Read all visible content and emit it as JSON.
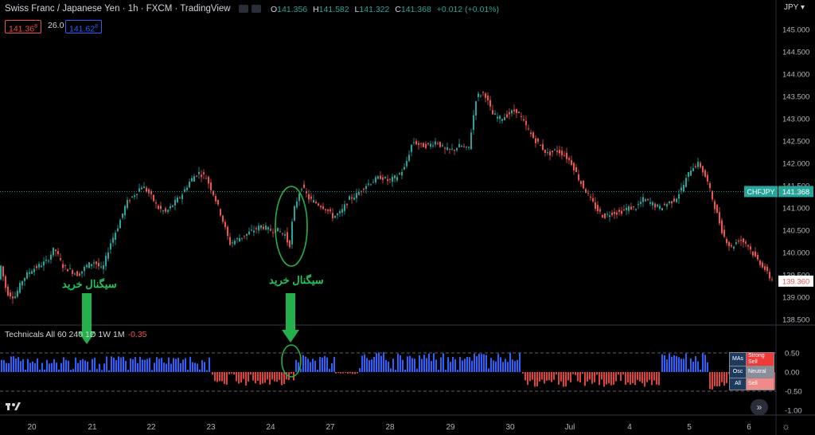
{
  "header": {
    "title": "Swiss Franc / Japanese Yen · 1h · FXCM · TradingView",
    "ohlc": [
      {
        "k": "O",
        "v": "141.356"
      },
      {
        "k": "H",
        "v": "141.582"
      },
      {
        "k": "L",
        "v": "141.322"
      },
      {
        "k": "C",
        "v": "141.368"
      }
    ],
    "change": "+0.012 (+0.01%)",
    "sell_price": "141.36",
    "sell_sup": "8",
    "spread": "26.0",
    "buy_price": "141.62",
    "buy_sup": "8",
    "currency": "JPY"
  },
  "indicator": {
    "title": "Technicals All 60 240 1D 1W 1M",
    "value": "-0.35",
    "table": [
      {
        "k": "MAs",
        "v": "Strong Sell",
        "color": "#ef3a3a"
      },
      {
        "k": "Osc",
        "v": "Neutral",
        "color": "#8a8e99"
      },
      {
        "k": "All",
        "v": "Sell",
        "color": "#f08a8a"
      }
    ]
  },
  "annotations": {
    "buy_signal_1": "سیگنال خرید",
    "buy_signal_2": "سیگنال خرید",
    "arrow_color": "#22b14c"
  },
  "colors": {
    "up": "#26a69a",
    "down": "#ef5350",
    "osc_pos": "#2962ff",
    "osc_neg": "#e0413a",
    "symbol_label": "#26a69a",
    "last_label_bg": "#ffffff",
    "last_label_fg": "#ef5350"
  },
  "chart_data": [
    {
      "type": "candlestick",
      "symbol": "CHFJPY",
      "x_ticks": [
        "20",
        "21",
        "22",
        "23",
        "24",
        "27",
        "28",
        "29",
        "30",
        "Jul",
        "4",
        "5",
        "6"
      ],
      "y_ticks": [
        "145.000",
        "144.500",
        "144.000",
        "143.500",
        "143.000",
        "142.500",
        "142.000",
        "141.500",
        "141.000",
        "140.500",
        "140.000",
        "139.500",
        "139.000",
        "138.500"
      ],
      "ylim": [
        138.5,
        145.0
      ],
      "current_price": 141.368,
      "current_label": "141.368",
      "symbol_label": "CHFJPY",
      "last_label": "139.360",
      "path": [
        [
          0,
          139.9
        ],
        [
          10,
          139.1
        ],
        [
          20,
          139.0
        ],
        [
          30,
          139.4
        ],
        [
          40,
          139.6
        ],
        [
          50,
          139.7
        ],
        [
          60,
          139.8
        ],
        [
          70,
          140.1
        ],
        [
          80,
          139.7
        ],
        [
          90,
          139.6
        ],
        [
          100,
          139.5
        ],
        [
          110,
          139.7
        ],
        [
          120,
          139.8
        ],
        [
          130,
          139.6
        ],
        [
          140,
          140.2
        ],
        [
          150,
          140.6
        ],
        [
          160,
          141.1
        ],
        [
          170,
          141.3
        ],
        [
          180,
          141.5
        ],
        [
          190,
          141.3
        ],
        [
          200,
          141.0
        ],
        [
          210,
          140.9
        ],
        [
          220,
          141.1
        ],
        [
          230,
          141.3
        ],
        [
          240,
          141.6
        ],
        [
          250,
          141.8
        ],
        [
          260,
          141.7
        ],
        [
          270,
          141.3
        ],
        [
          280,
          140.8
        ],
        [
          290,
          140.2
        ],
        [
          300,
          140.3
        ],
        [
          310,
          140.4
        ],
        [
          320,
          140.5
        ],
        [
          330,
          140.6
        ],
        [
          340,
          140.5
        ],
        [
          350,
          140.5
        ],
        [
          360,
          140.4
        ],
        [
          365,
          140.1
        ],
        [
          370,
          140.9
        ],
        [
          380,
          141.5
        ],
        [
          390,
          141.2
        ],
        [
          400,
          141.1
        ],
        [
          410,
          141.0
        ],
        [
          420,
          140.8
        ],
        [
          430,
          140.9
        ],
        [
          440,
          141.2
        ],
        [
          450,
          141.3
        ],
        [
          460,
          141.5
        ],
        [
          470,
          141.6
        ],
        [
          480,
          141.7
        ],
        [
          490,
          141.6
        ],
        [
          500,
          141.7
        ],
        [
          510,
          141.9
        ],
        [
          520,
          142.5
        ],
        [
          530,
          142.4
        ],
        [
          540,
          142.4
        ],
        [
          550,
          142.5
        ],
        [
          560,
          142.3
        ],
        [
          570,
          142.3
        ],
        [
          580,
          142.4
        ],
        [
          590,
          142.3
        ],
        [
          600,
          143.5
        ],
        [
          610,
          143.6
        ],
        [
          620,
          143.1
        ],
        [
          630,
          143.0
        ],
        [
          640,
          143.1
        ],
        [
          650,
          143.2
        ],
        [
          660,
          142.9
        ],
        [
          670,
          142.6
        ],
        [
          680,
          142.4
        ],
        [
          690,
          142.2
        ],
        [
          700,
          142.3
        ],
        [
          710,
          142.2
        ],
        [
          720,
          142.0
        ],
        [
          730,
          141.6
        ],
        [
          740,
          141.3
        ],
        [
          750,
          141.0
        ],
        [
          760,
          140.8
        ],
        [
          770,
          140.9
        ],
        [
          780,
          140.9
        ],
        [
          790,
          141.0
        ],
        [
          800,
          141.0
        ],
        [
          810,
          141.2
        ],
        [
          820,
          141.1
        ],
        [
          830,
          141.0
        ],
        [
          840,
          141.1
        ],
        [
          850,
          141.2
        ],
        [
          860,
          141.5
        ],
        [
          870,
          141.9
        ],
        [
          880,
          142.0
        ],
        [
          890,
          141.6
        ],
        [
          900,
          141.0
        ],
        [
          910,
          140.4
        ],
        [
          920,
          140.1
        ],
        [
          930,
          140.3
        ],
        [
          940,
          140.2
        ],
        [
          950,
          139.9
        ],
        [
          960,
          139.7
        ],
        [
          970,
          139.4
        ]
      ]
    },
    {
      "type": "bar",
      "name": "Technicals",
      "y_ticks": [
        "0.50",
        "0.00",
        "-0.50",
        "-1.00"
      ],
      "ylim": [
        -1.0,
        1.0
      ],
      "x_range": [
        0,
        975
      ],
      "segments": [
        [
          0,
          265,
          0.38
        ],
        [
          265,
          370,
          -0.32
        ],
        [
          370,
          420,
          0.42
        ],
        [
          420,
          450,
          -0.05
        ],
        [
          450,
          655,
          0.48
        ],
        [
          655,
          830,
          -0.35
        ],
        [
          830,
          890,
          0.45
        ],
        [
          890,
          975,
          -0.45
        ]
      ]
    }
  ]
}
